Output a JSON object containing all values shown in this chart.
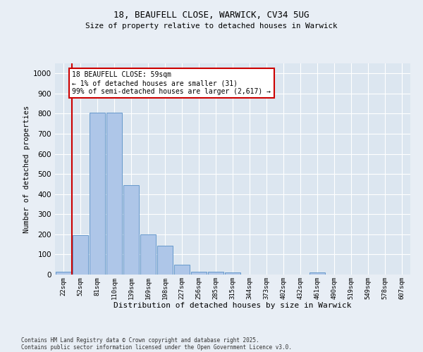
{
  "title1": "18, BEAUFELL CLOSE, WARWICK, CV34 5UG",
  "title2": "Size of property relative to detached houses in Warwick",
  "xlabel": "Distribution of detached houses by size in Warwick",
  "ylabel": "Number of detached properties",
  "categories": [
    "22sqm",
    "52sqm",
    "81sqm",
    "110sqm",
    "139sqm",
    "169sqm",
    "198sqm",
    "227sqm",
    "256sqm",
    "285sqm",
    "315sqm",
    "344sqm",
    "373sqm",
    "402sqm",
    "432sqm",
    "461sqm",
    "490sqm",
    "519sqm",
    "549sqm",
    "578sqm",
    "607sqm"
  ],
  "values": [
    15,
    195,
    805,
    805,
    445,
    200,
    145,
    50,
    15,
    15,
    10,
    0,
    0,
    0,
    0,
    10,
    0,
    0,
    0,
    0,
    0
  ],
  "bar_color": "#aec6e8",
  "bar_edge_color": "#6699cc",
  "annotation_title": "18 BEAUFELL CLOSE: 59sqm",
  "annotation_line1": "← 1% of detached houses are smaller (31)",
  "annotation_line2": "99% of semi-detached houses are larger (2,617) →",
  "annotation_box_color": "#ffffff",
  "annotation_box_edge": "#cc0000",
  "red_line_color": "#cc0000",
  "background_color": "#e8eef5",
  "plot_bg_color": "#dce6f0",
  "grid_color": "#ffffff",
  "ylim": [
    0,
    1050
  ],
  "yticks": [
    0,
    100,
    200,
    300,
    400,
    500,
    600,
    700,
    800,
    900,
    1000
  ],
  "footer1": "Contains HM Land Registry data © Crown copyright and database right 2025.",
  "footer2": "Contains public sector information licensed under the Open Government Licence v3.0."
}
